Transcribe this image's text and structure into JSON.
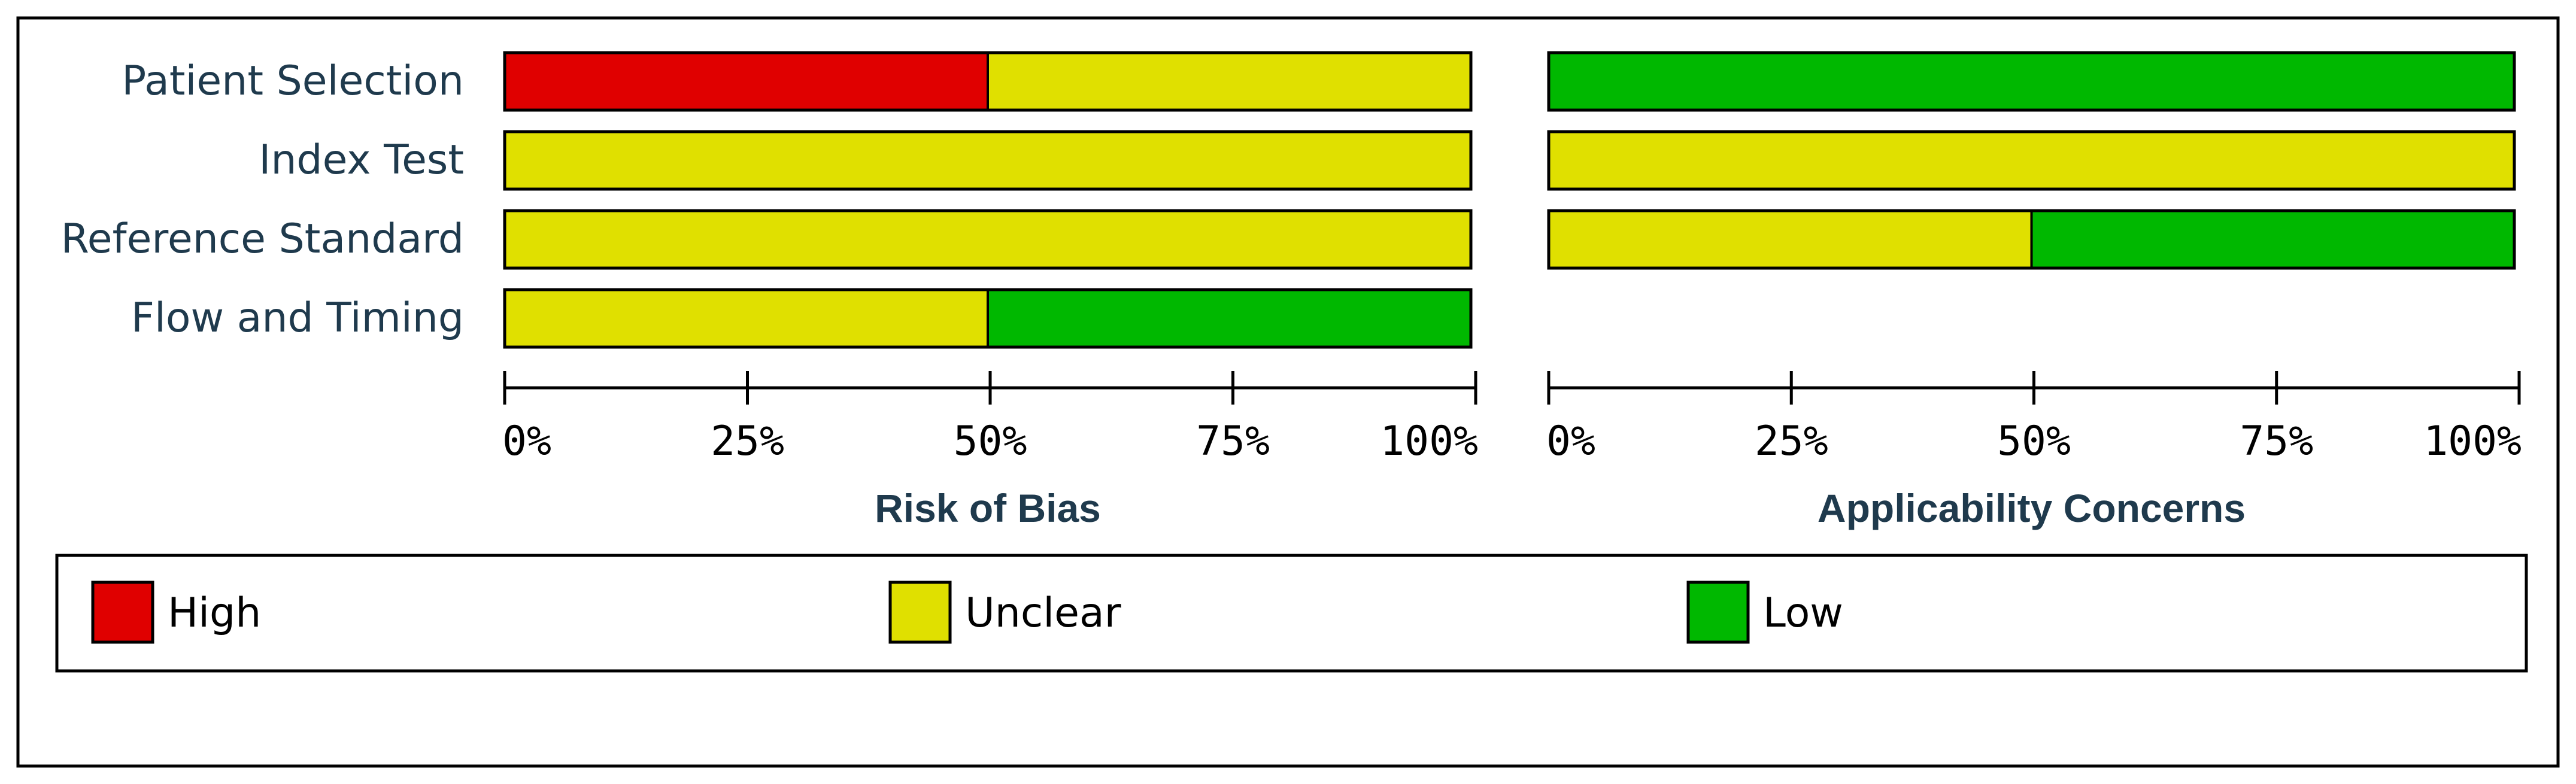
{
  "chart_data": {
    "type": "bar",
    "stacked": true,
    "orientation": "horizontal",
    "percent_scale": [
      0,
      100
    ],
    "ticks": [
      "0%",
      "25%",
      "50%",
      "75%",
      "100%"
    ],
    "colors": {
      "High": "#e00000",
      "Unclear": "#e0e000",
      "Low": "#00b800"
    },
    "legend": {
      "position": "bottom",
      "items": [
        {
          "label": "High",
          "color": "#e00000"
        },
        {
          "label": "Unclear",
          "color": "#e0e000"
        },
        {
          "label": "Low",
          "color": "#00b800"
        }
      ]
    },
    "categories": [
      "Patient Selection",
      "Index Test",
      "Reference Standard",
      "Flow and Timing"
    ],
    "panels": [
      {
        "title": "Risk of Bias",
        "rows": [
          {
            "category": "Patient Selection",
            "High": 50,
            "Unclear": 50,
            "Low": 0
          },
          {
            "category": "Index Test",
            "High": 0,
            "Unclear": 100,
            "Low": 0
          },
          {
            "category": "Reference Standard",
            "High": 0,
            "Unclear": 100,
            "Low": 0
          },
          {
            "category": "Flow and Timing",
            "High": 0,
            "Unclear": 50,
            "Low": 50
          }
        ]
      },
      {
        "title": "Applicability Concerns",
        "rows": [
          {
            "category": "Patient Selection",
            "High": 0,
            "Unclear": 0,
            "Low": 100
          },
          {
            "category": "Index Test",
            "High": 0,
            "Unclear": 100,
            "Low": 0
          },
          {
            "category": "Reference Standard",
            "High": 0,
            "Unclear": 50,
            "Low": 50
          }
        ]
      }
    ]
  }
}
